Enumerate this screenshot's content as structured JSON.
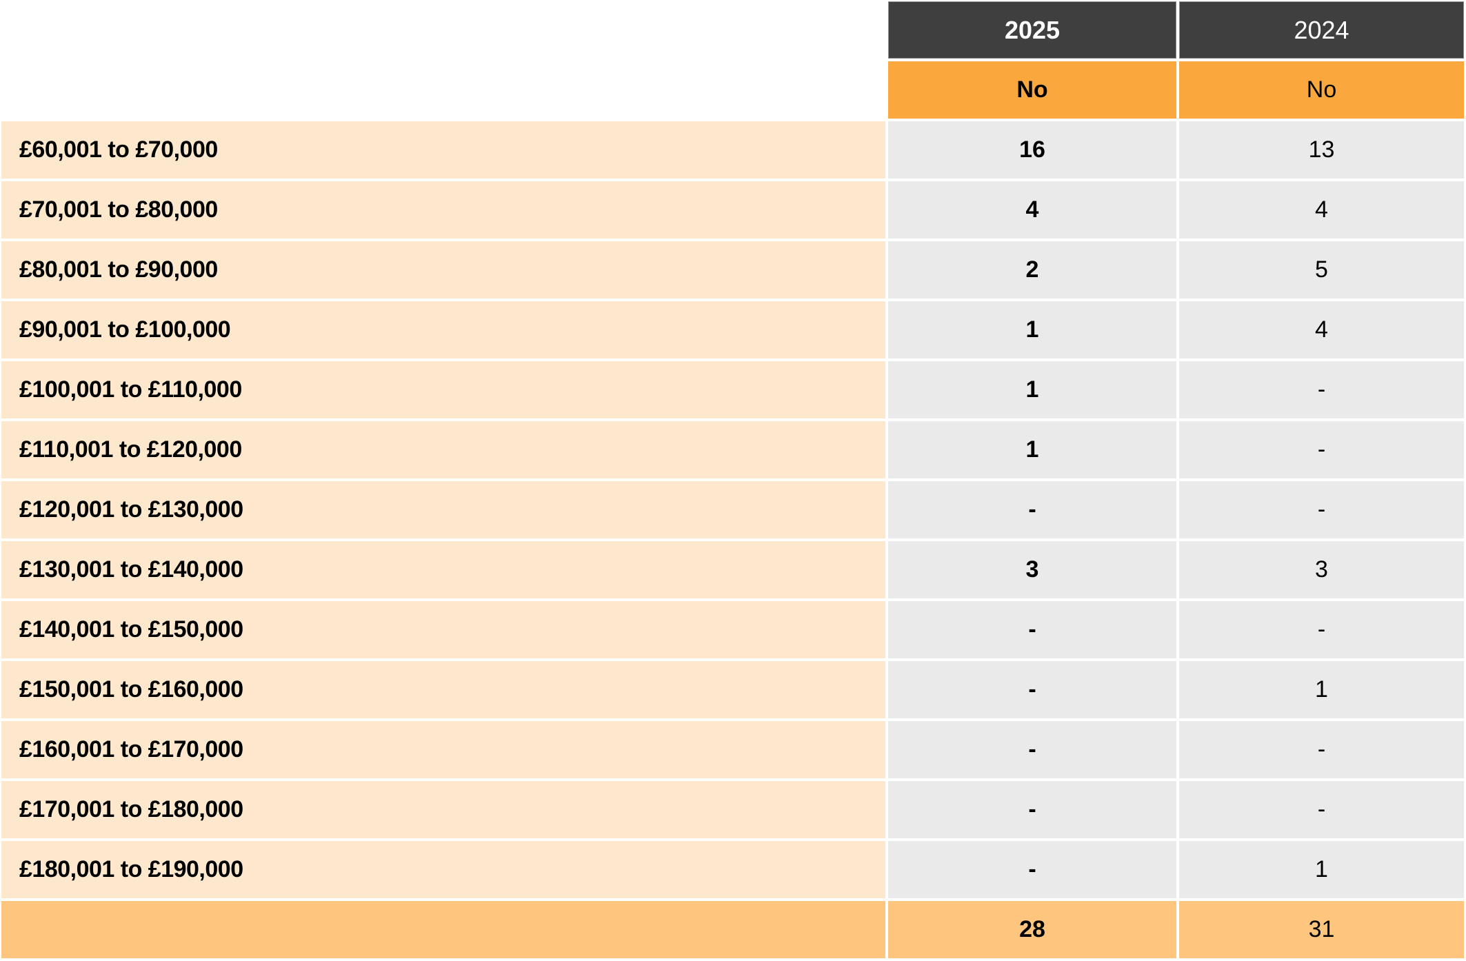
{
  "chart_data": {
    "type": "table",
    "columns": [
      {
        "year": "2025",
        "unit": "No"
      },
      {
        "year": "2024",
        "unit": "No"
      }
    ],
    "rows": [
      {
        "band": "£60,001 to £70,000",
        "values": [
          "16",
          "13"
        ]
      },
      {
        "band": "£70,001 to £80,000",
        "values": [
          "4",
          "4"
        ]
      },
      {
        "band": "£80,001 to £90,000",
        "values": [
          "2",
          "5"
        ]
      },
      {
        "band": "£90,001 to £100,000",
        "values": [
          "1",
          "4"
        ]
      },
      {
        "band": "£100,001 to £110,000",
        "values": [
          "1",
          "-"
        ]
      },
      {
        "band": "£110,001 to £120,000",
        "values": [
          "1",
          "-"
        ]
      },
      {
        "band": "£120,001 to £130,000",
        "values": [
          "-",
          "-"
        ]
      },
      {
        "band": "£130,001 to £140,000",
        "values": [
          "3",
          "3"
        ]
      },
      {
        "band": "£140,001 to £150,000",
        "values": [
          "-",
          "-"
        ]
      },
      {
        "band": "£150,001 to £160,000",
        "values": [
          "-",
          "1"
        ]
      },
      {
        "band": "£160,001 to £170,000",
        "values": [
          "-",
          "-"
        ]
      },
      {
        "band": "£170,001 to £180,000",
        "values": [
          "-",
          "-"
        ]
      },
      {
        "band": "£180,001 to £190,000",
        "values": [
          "-",
          "1"
        ]
      }
    ],
    "total": {
      "values": [
        "28",
        "31"
      ]
    },
    "layout": {
      "grid": "off",
      "first_column_header": "",
      "gap_color": "#ffffff"
    }
  },
  "colors": {
    "header_dark": "#3F3F3F",
    "header_orange": "#FAA83D",
    "band_bg": "#FDE8CD",
    "value_bg": "#EAEAEA",
    "total_bg": "#FDC57D",
    "header_text": "#FFFFFF",
    "body_text": "#000000"
  }
}
